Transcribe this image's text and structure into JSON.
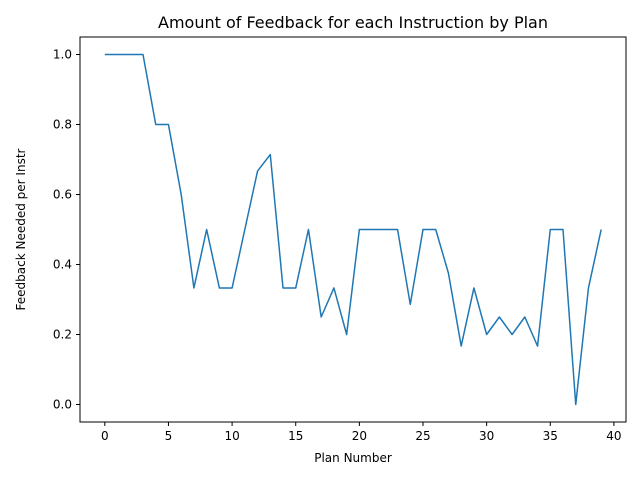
{
  "chart_data": {
    "type": "line",
    "title": "Amount of Feedback for each Instruction by Plan",
    "xlabel": "Plan Number",
    "ylabel": "Feedback Needed per Instr",
    "xlim": [
      -1.95,
      40.95
    ],
    "ylim": [
      -0.05,
      1.05
    ],
    "x_ticks": [
      0,
      5,
      10,
      15,
      20,
      25,
      30,
      35,
      40
    ],
    "y_ticks": [
      0.0,
      0.2,
      0.4,
      0.6,
      0.8,
      1.0
    ],
    "x_tick_labels": [
      "0",
      "5",
      "10",
      "15",
      "20",
      "25",
      "30",
      "35",
      "40"
    ],
    "y_tick_labels": [
      "0.0",
      "0.2",
      "0.4",
      "0.6",
      "0.8",
      "1.0"
    ],
    "grid": false,
    "line_color": "#1f77b4",
    "series": [
      {
        "x": [
          0,
          1,
          2,
          3,
          4,
          5,
          6,
          7,
          8,
          9,
          10,
          11,
          12,
          13,
          14,
          15,
          16,
          17,
          18,
          19,
          20,
          21,
          22,
          23,
          24,
          25,
          26,
          27,
          28,
          29,
          30,
          31,
          32,
          33,
          34,
          35,
          36,
          37,
          38,
          39
        ],
        "values": [
          1.0,
          1.0,
          1.0,
          1.0,
          0.8,
          0.8,
          0.6,
          0.333,
          0.5,
          0.333,
          0.333,
          0.5,
          0.667,
          0.714,
          0.333,
          0.333,
          0.5,
          0.25,
          0.333,
          0.2,
          0.5,
          0.5,
          0.5,
          0.5,
          0.286,
          0.5,
          0.5,
          0.375,
          0.167,
          0.333,
          0.2,
          0.25,
          0.2,
          0.25,
          0.167,
          0.5,
          0.5,
          0.0,
          0.333,
          0.5
        ]
      }
    ]
  }
}
